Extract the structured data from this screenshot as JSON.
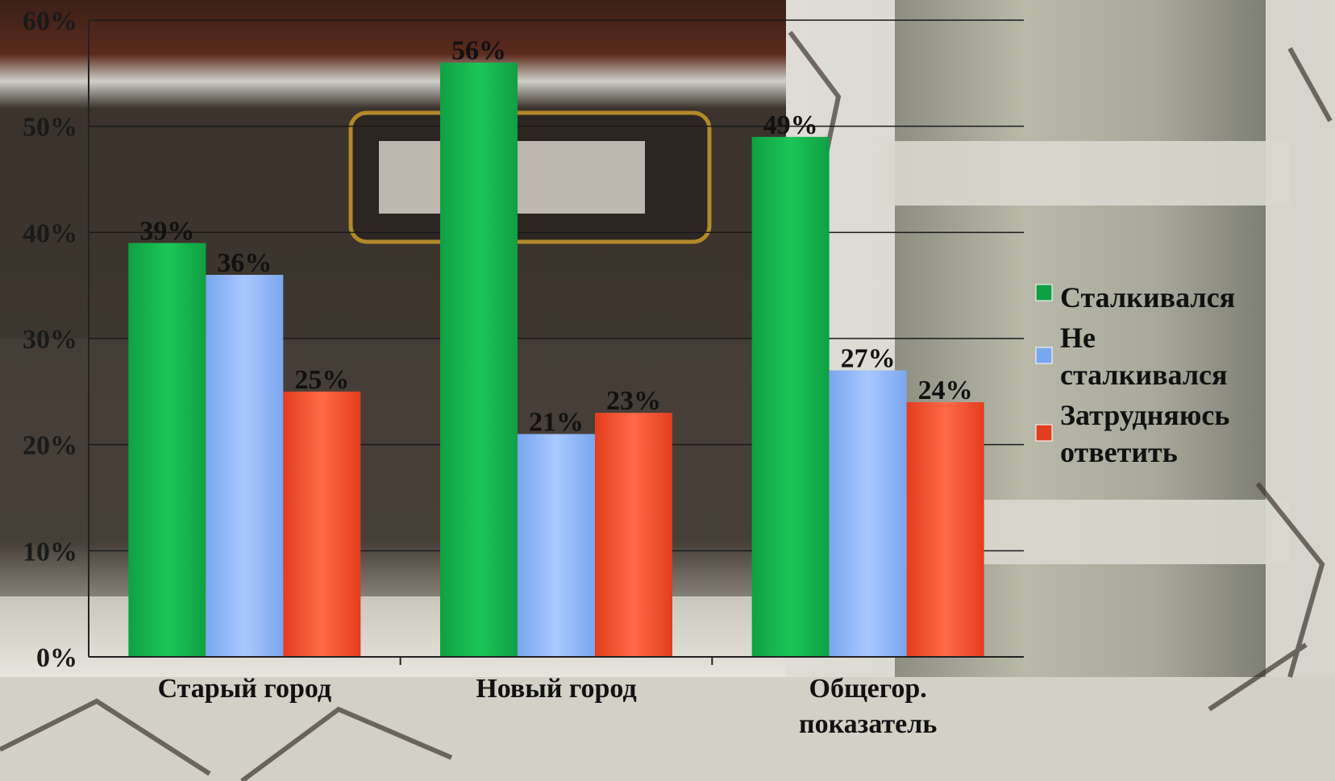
{
  "chart_data": {
    "type": "bar",
    "categories": [
      "Старый город",
      "Новый город",
      "Общегор. показатель"
    ],
    "series": [
      {
        "name": "Сталкивался",
        "values": [
          39,
          56,
          49
        ],
        "labels": [
          "39%",
          "56%",
          "49%"
        ]
      },
      {
        "name": "Не сталкивался",
        "values": [
          36,
          21,
          27
        ],
        "labels": [
          "36%",
          "21%",
          "27%"
        ]
      },
      {
        "name": "Затрудняюсь ответить",
        "values": [
          25,
          23,
          24
        ],
        "labels": [
          "25%",
          "23%",
          "24%"
        ]
      }
    ],
    "ylim": [
      0,
      60
    ],
    "yticks": [
      0,
      10,
      20,
      30,
      40,
      50,
      60
    ],
    "ytick_labels": [
      "0%",
      "10%",
      "20%",
      "30%",
      "40%",
      "50%",
      "60%"
    ],
    "legend_position": "right",
    "grid": true,
    "colors": {
      "series": [
        "#0fa044",
        "#7aa6ee",
        "#e23d1f"
      ],
      "series_light": [
        "#1cc557",
        "#aac8ff",
        "#ff6a47"
      ],
      "gridline": "#1a1a1a"
    }
  },
  "legend": {
    "items": [
      {
        "lines": [
          "Сталкивался"
        ]
      },
      {
        "lines": [
          "Не",
          "сталкивался"
        ]
      },
      {
        "lines": [
          "Затрудняюсь",
          "ответить"
        ]
      }
    ]
  },
  "axis": {
    "category_lines": [
      [
        "Старый город"
      ],
      [
        "Новый город"
      ],
      [
        "Общегор.",
        "показатель"
      ]
    ]
  }
}
